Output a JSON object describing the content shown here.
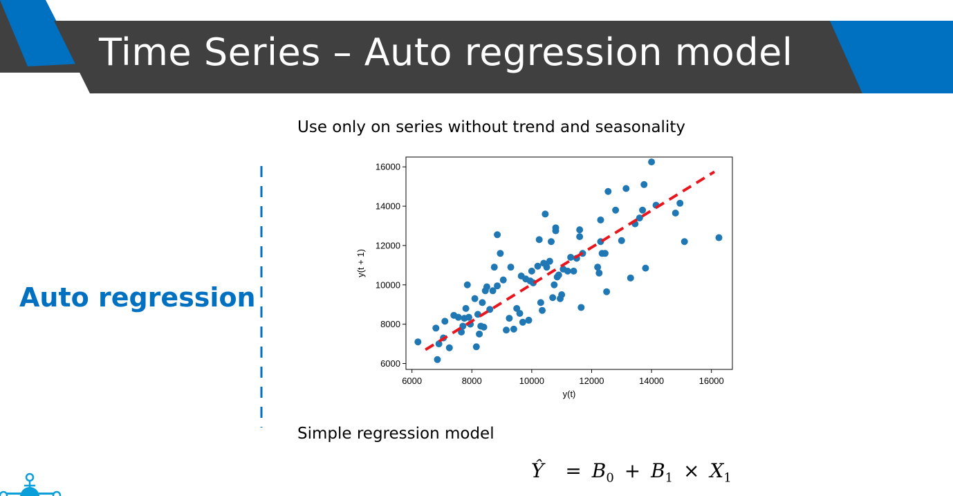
{
  "slide": {
    "title": "Time Series – Auto regression model",
    "subtitle": "Use only on series without trend and seasonality",
    "side_label": "Auto regression",
    "model_label": "Simple regression model"
  },
  "formula": {
    "lhs": "Ŷ",
    "eq": "=",
    "b0": "B",
    "b0_sub": "0",
    "plus": "+",
    "b1": "B",
    "b1_sub": "1",
    "times": "×",
    "x1": "X",
    "x1_sub": "1"
  },
  "colors": {
    "banner_dark": "#404040",
    "banner_blue": "#0070c0",
    "points": "#1f77b4",
    "trend": "#e8171f",
    "side_label": "#0070c0",
    "divider": "#0070c0"
  },
  "chart_data": {
    "type": "scatter",
    "xlabel": "y(t)",
    "ylabel": "y(t + 1)",
    "xlim": [
      5800,
      16700
    ],
    "ylim": [
      5700,
      16500
    ],
    "xticks": [
      "6000",
      "8000",
      "10000",
      "12000",
      "14000",
      "16000"
    ],
    "yticks": [
      "6000",
      "8000",
      "10000",
      "12000",
      "14000",
      "16000"
    ],
    "grid": false,
    "legend": "none",
    "points": [
      [
        6200,
        7100
      ],
      [
        6800,
        7800
      ],
      [
        6850,
        6200
      ],
      [
        6900,
        7000
      ],
      [
        7050,
        7300
      ],
      [
        7100,
        8150
      ],
      [
        7250,
        6800
      ],
      [
        7400,
        8450
      ],
      [
        7550,
        8350
      ],
      [
        7650,
        7600
      ],
      [
        7700,
        7900
      ],
      [
        7750,
        8300
      ],
      [
        7800,
        8800
      ],
      [
        7850,
        10000
      ],
      [
        7900,
        8350
      ],
      [
        7950,
        8000
      ],
      [
        8100,
        9300
      ],
      [
        8150,
        6850
      ],
      [
        8200,
        8500
      ],
      [
        8250,
        7500
      ],
      [
        8300,
        7900
      ],
      [
        8350,
        9100
      ],
      [
        8400,
        7850
      ],
      [
        8450,
        9700
      ],
      [
        8500,
        9900
      ],
      [
        8600,
        8750
      ],
      [
        8700,
        9700
      ],
      [
        8750,
        10900
      ],
      [
        8850,
        9950
      ],
      [
        8850,
        12550
      ],
      [
        8950,
        11600
      ],
      [
        9050,
        10250
      ],
      [
        9150,
        7700
      ],
      [
        9250,
        8300
      ],
      [
        9300,
        10900
      ],
      [
        9400,
        7750
      ],
      [
        9500,
        8800
      ],
      [
        9600,
        8550
      ],
      [
        9650,
        10450
      ],
      [
        9700,
        8100
      ],
      [
        9800,
        10300
      ],
      [
        9900,
        8200
      ],
      [
        9950,
        10200
      ],
      [
        10000,
        10700
      ],
      [
        10050,
        10100
      ],
      [
        10200,
        10950
      ],
      [
        10250,
        12300
      ],
      [
        10300,
        9100
      ],
      [
        10350,
        8700
      ],
      [
        10400,
        11100
      ],
      [
        10450,
        13600
      ],
      [
        10500,
        10900
      ],
      [
        10600,
        11200
      ],
      [
        10650,
        12200
      ],
      [
        10700,
        9350
      ],
      [
        10750,
        10000
      ],
      [
        10800,
        12900
      ],
      [
        10800,
        12750
      ],
      [
        10850,
        10400
      ],
      [
        10900,
        10500
      ],
      [
        10950,
        9300
      ],
      [
        11000,
        9500
      ],
      [
        11050,
        10800
      ],
      [
        11200,
        10700
      ],
      [
        11300,
        11400
      ],
      [
        11400,
        10700
      ],
      [
        11500,
        11350
      ],
      [
        11600,
        12450
      ],
      [
        11600,
        12800
      ],
      [
        11650,
        8850
      ],
      [
        11700,
        11600
      ],
      [
        12200,
        10900
      ],
      [
        12250,
        10600
      ],
      [
        12300,
        13300
      ],
      [
        12300,
        12200
      ],
      [
        12350,
        11600
      ],
      [
        12450,
        11600
      ],
      [
        12500,
        9650
      ],
      [
        12550,
        14750
      ],
      [
        12800,
        13800
      ],
      [
        13000,
        12250
      ],
      [
        13150,
        14900
      ],
      [
        13300,
        10350
      ],
      [
        13450,
        13100
      ],
      [
        13600,
        13400
      ],
      [
        13700,
        13800
      ],
      [
        13750,
        15100
      ],
      [
        13800,
        10850
      ],
      [
        14000,
        16250
      ],
      [
        14150,
        14050
      ],
      [
        14800,
        13650
      ],
      [
        14950,
        14150
      ],
      [
        15100,
        12200
      ],
      [
        16250,
        12400
      ]
    ],
    "trend_line": {
      "from": [
        6450,
        6700
      ],
      "to": [
        16100,
        15750
      ]
    }
  }
}
